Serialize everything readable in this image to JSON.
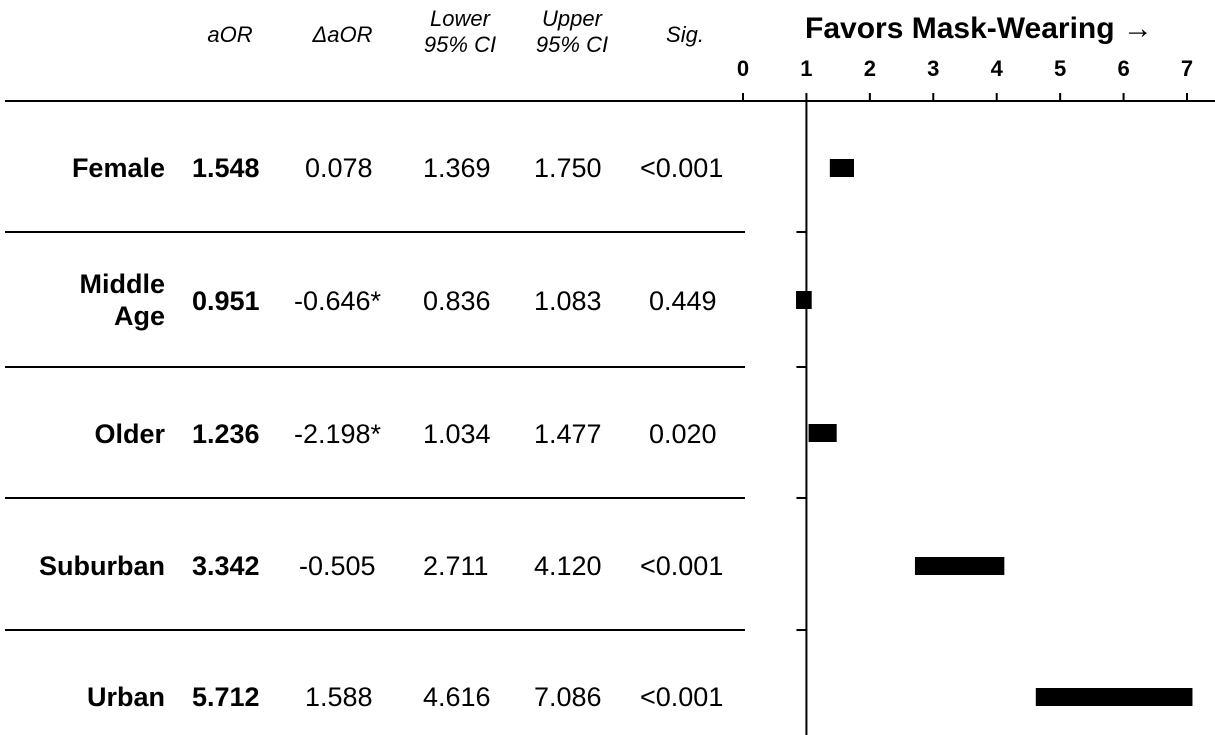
{
  "headers": {
    "aor": "aOR",
    "daor": "ΔaOR",
    "lower_line1": "Lower",
    "lower_line2": "95% CI",
    "upper_line1": "Upper",
    "upper_line2": "95% CI",
    "sig": "Sig."
  },
  "axis_title": "Favors Mask-Wearing →",
  "rows": [
    {
      "label_line1": "Female",
      "label_line2": "",
      "aor": "1.548",
      "daor": "0.078",
      "lower": "1.369",
      "upper": "1.750",
      "sig": "<0.001"
    },
    {
      "label_line1": "Middle",
      "label_line2": "Age",
      "aor": "0.951",
      "daor": "-0.646*",
      "lower": "0.836",
      "upper": "1.083",
      "sig": "0.449"
    },
    {
      "label_line1": "Older",
      "label_line2": "",
      "aor": "1.236",
      "daor": "-2.198*",
      "lower": "1.034",
      "upper": "1.477",
      "sig": "0.020"
    },
    {
      "label_line1": "Suburban",
      "label_line2": "",
      "aor": "3.342",
      "daor": "-0.505",
      "lower": "2.711",
      "upper": "4.120",
      "sig": "<0.001"
    },
    {
      "label_line1": "Urban",
      "label_line2": "",
      "aor": "5.712",
      "daor": "1.588",
      "lower": "4.616",
      "upper": "7.086",
      "sig": "<0.001"
    }
  ],
  "chart_data": {
    "type": "forest",
    "xlim": [
      0,
      7
    ],
    "x_ticks": [
      "0",
      "1",
      "2",
      "3",
      "4",
      "5",
      "6",
      "7"
    ],
    "reference_line": 1,
    "categories": [
      "Female",
      "Middle Age",
      "Older",
      "Suburban",
      "Urban"
    ],
    "series": [
      {
        "lower": [
          1.369,
          0.836,
          1.034,
          2.711,
          4.616
        ],
        "upper": [
          1.75,
          1.083,
          1.477,
          4.12,
          7.086
        ],
        "estimate": [
          1.548,
          0.951,
          1.236,
          3.342,
          5.712
        ]
      }
    ]
  }
}
